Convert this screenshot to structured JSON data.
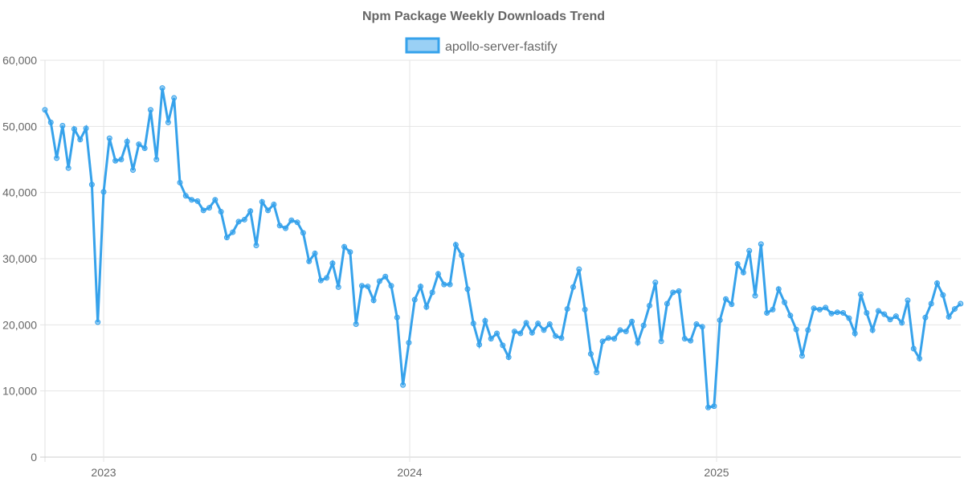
{
  "chart_data": {
    "type": "line",
    "title": "Npm Package Weekly Downloads Trend",
    "xlabel": "",
    "ylabel": "",
    "ylim": [
      0,
      60000
    ],
    "y_ticks": [
      "0",
      "10,000",
      "20,000",
      "30,000",
      "40,000",
      "50,000",
      "60,000"
    ],
    "x_ticks": [
      "2023",
      "2024",
      "2025"
    ],
    "grid": true,
    "legend_position": "top",
    "colors": {
      "line": "#36a2eb",
      "fill": "#9ad0f5"
    },
    "x": [
      "2022-10-23",
      "2022-10-30",
      "2022-11-06",
      "2022-11-13",
      "2022-11-20",
      "2022-11-27",
      "2022-12-04",
      "2022-12-11",
      "2022-12-18",
      "2022-12-25",
      "2023-01-01",
      "2023-01-08",
      "2023-01-15",
      "2023-01-22",
      "2023-01-29",
      "2023-02-05",
      "2023-02-12",
      "2023-02-19",
      "2023-02-26",
      "2023-03-05",
      "2023-03-12",
      "2023-03-19",
      "2023-03-26",
      "2023-04-02",
      "2023-04-09",
      "2023-04-16",
      "2023-04-23",
      "2023-04-30",
      "2023-05-07",
      "2023-05-14",
      "2023-05-21",
      "2023-05-28",
      "2023-06-04",
      "2023-06-11",
      "2023-06-18",
      "2023-06-25",
      "2023-07-02",
      "2023-07-09",
      "2023-07-16",
      "2023-07-23",
      "2023-07-30",
      "2023-08-06",
      "2023-08-13",
      "2023-08-20",
      "2023-08-27",
      "2023-09-03",
      "2023-09-10",
      "2023-09-17",
      "2023-09-24",
      "2023-10-01",
      "2023-10-08",
      "2023-10-15",
      "2023-10-22",
      "2023-10-29",
      "2023-11-05",
      "2023-11-12",
      "2023-11-19",
      "2023-11-26",
      "2023-12-03",
      "2023-12-10",
      "2023-12-17",
      "2023-12-24",
      "2023-12-31",
      "2024-01-07",
      "2024-01-14",
      "2024-01-21",
      "2024-01-28",
      "2024-02-04",
      "2024-02-11",
      "2024-02-18",
      "2024-02-25",
      "2024-03-03",
      "2024-03-10",
      "2024-03-17",
      "2024-03-24",
      "2024-03-31",
      "2024-04-07",
      "2024-04-14",
      "2024-04-21",
      "2024-04-28",
      "2024-05-05",
      "2024-05-12",
      "2024-05-19",
      "2024-05-26",
      "2024-06-02",
      "2024-06-09",
      "2024-06-16",
      "2024-06-23",
      "2024-06-30",
      "2024-07-07",
      "2024-07-14",
      "2024-07-21",
      "2024-07-28",
      "2024-08-04",
      "2024-08-11",
      "2024-08-18",
      "2024-08-25",
      "2024-09-01",
      "2024-09-08",
      "2024-09-15",
      "2024-09-22",
      "2024-09-29",
      "2024-10-06",
      "2024-10-13",
      "2024-10-20",
      "2024-10-27",
      "2024-11-03",
      "2024-11-10",
      "2024-11-17",
      "2024-11-24",
      "2024-12-01",
      "2024-12-08",
      "2024-12-15",
      "2024-12-22",
      "2024-12-29",
      "2025-01-05",
      "2025-01-12",
      "2025-01-19",
      "2025-01-26",
      "2025-02-02",
      "2025-02-09",
      "2025-02-16",
      "2025-02-23",
      "2025-03-02",
      "2025-03-09",
      "2025-03-16",
      "2025-03-23",
      "2025-03-30",
      "2025-04-06",
      "2025-04-13",
      "2025-04-20",
      "2025-04-27",
      "2025-05-04",
      "2025-05-11",
      "2025-05-18",
      "2025-05-25",
      "2025-06-01",
      "2025-06-08",
      "2025-06-15",
      "2025-06-22",
      "2025-06-29",
      "2025-07-06",
      "2025-07-13",
      "2025-07-20",
      "2025-07-27",
      "2025-08-03",
      "2025-08-10",
      "2025-08-17",
      "2025-08-24",
      "2025-08-31",
      "2025-09-07",
      "2025-09-14",
      "2025-09-21",
      "2025-09-28",
      "2025-10-05",
      "2025-10-12",
      "2025-10-19"
    ],
    "series": [
      {
        "name": "apollo-server-fastify",
        "values": [
          52500,
          50600,
          45200,
          50100,
          43700,
          49600,
          48000,
          49700,
          41200,
          20400,
          40100,
          48200,
          44800,
          45000,
          47700,
          43400,
          47300,
          46700,
          52500,
          45000,
          55800,
          50600,
          54300,
          41500,
          39500,
          38900,
          38700,
          37300,
          37700,
          38900,
          37100,
          33200,
          34000,
          35600,
          35900,
          37200,
          32000,
          38600,
          37300,
          38200,
          35000,
          34600,
          35800,
          35500,
          33900,
          29600,
          30800,
          26700,
          27100,
          29300,
          25700,
          31800,
          31000,
          20100,
          25900,
          25800,
          23700,
          26600,
          27300,
          25900,
          21100,
          10900,
          17300,
          23800,
          25800,
          22700,
          24900,
          27700,
          26100,
          26100,
          32100,
          30500,
          25400,
          20200,
          17000,
          20600,
          17900,
          18700,
          16900,
          15100,
          19000,
          18700,
          20300,
          18800,
          20200,
          19200,
          20100,
          18300,
          18000,
          22400,
          25700,
          28400,
          22300,
          15600,
          12800,
          17500,
          18000,
          17900,
          19200,
          19000,
          20500,
          17300,
          19900,
          22900,
          26400,
          17500,
          23200,
          24900,
          25100,
          17900,
          17600,
          20100,
          19700,
          7500,
          7700,
          20700,
          23900,
          23100,
          29200,
          27900,
          31200,
          24400,
          32200,
          21800,
          22300,
          25400,
          23400,
          21400,
          19300,
          15300,
          19200,
          22500,
          22300,
          22600,
          21700,
          21900,
          21800,
          21000,
          18700,
          24600,
          21800,
          19200,
          22100,
          21600,
          20800,
          21300,
          20300,
          23700,
          16400,
          14900,
          21100,
          23200,
          26300,
          24500,
          21200,
          22400,
          23200
        ]
      }
    ]
  }
}
